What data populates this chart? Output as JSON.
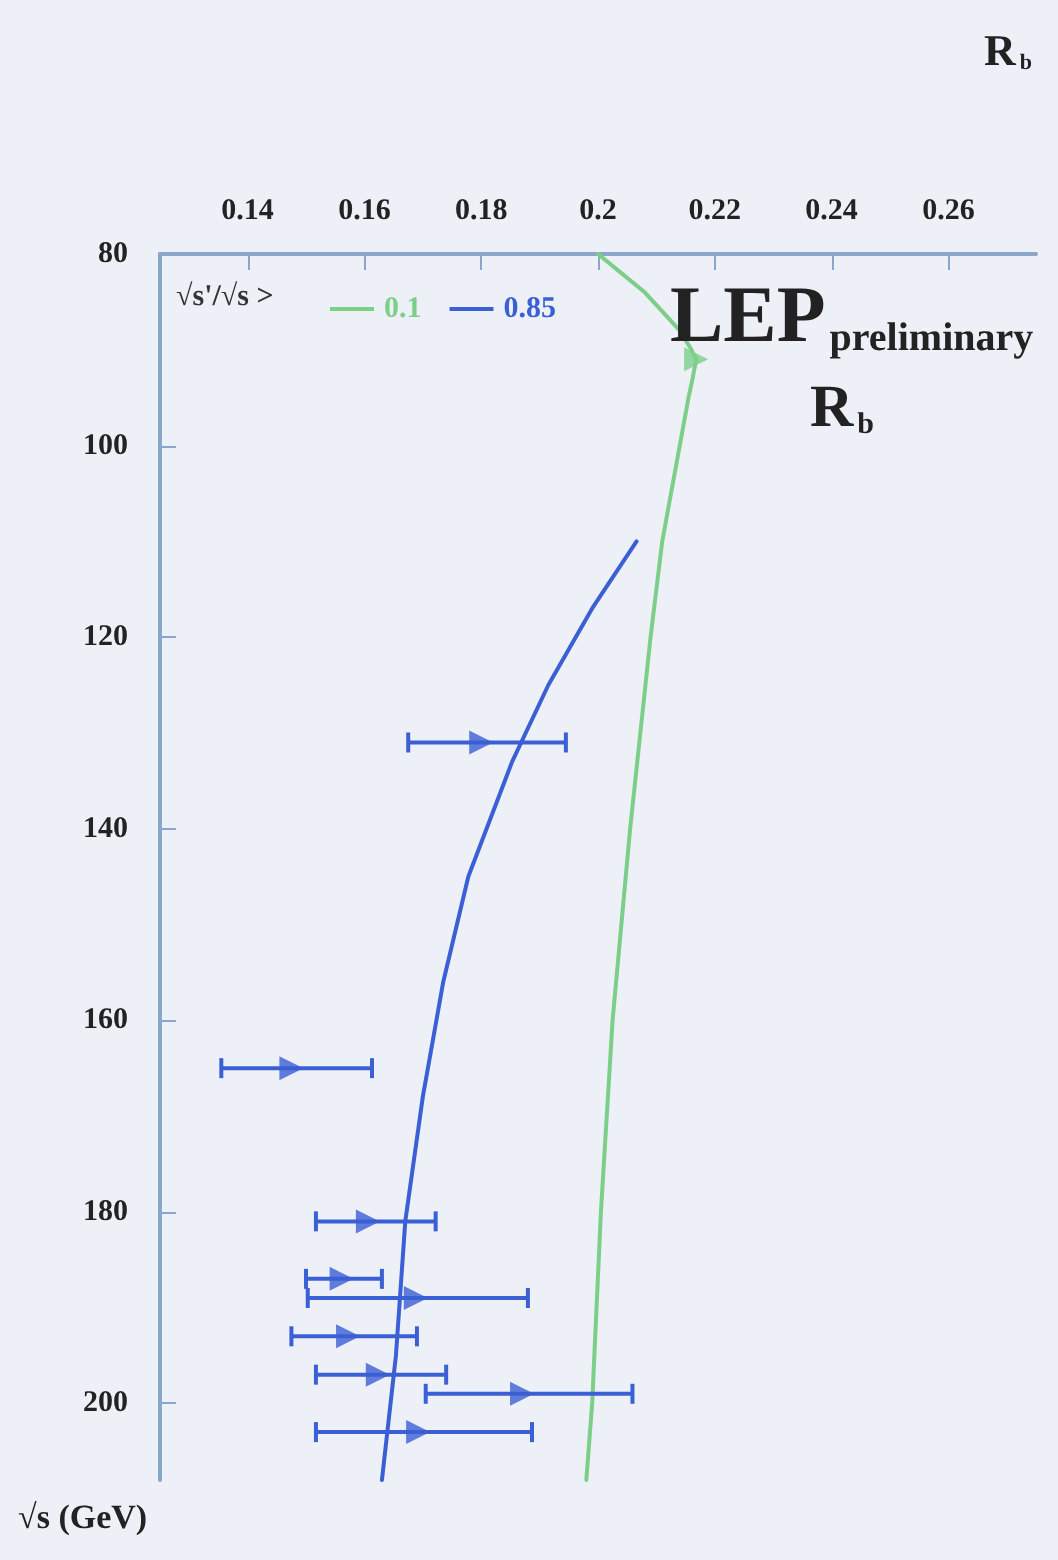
{
  "chart_data": {
    "type": "line",
    "title": "LEP$_{preliminary}$",
    "subtitle": "R$_{b}$",
    "xlabel": "R$_{b}$",
    "ylabel": "√s (GeV)",
    "legend_title": "√s'/√s >",
    "legend": "top left",
    "grid": false,
    "xlim": [
      0.125,
      0.275
    ],
    "xticks": [
      0.14,
      0.16,
      0.18,
      0.2,
      0.22,
      0.24,
      0.26
    ],
    "ylim": [
      208,
      80
    ],
    "yticks": [
      80,
      100,
      120,
      140,
      160,
      180,
      200
    ],
    "series": [
      {
        "name": "0.1",
        "color": "#7ccf88",
        "marker": "none",
        "line_style": "solid",
        "x": [
          0.2,
          0.204,
          0.208,
          0.211,
          0.214,
          0.216,
          0.2168,
          0.2162,
          0.2155,
          0.214,
          0.211,
          0.209,
          0.2055,
          0.2025,
          0.2005,
          0.199,
          0.198
        ],
        "values": [
          80,
          82,
          84,
          86,
          88,
          90,
          91,
          93,
          95,
          100,
          110,
          120,
          140,
          160,
          180,
          200,
          208
        ]
      },
      {
        "type": "scatter",
        "color": "#7ccf88",
        "marker": "triangle",
        "x": [
          0.2168
        ],
        "values": [
          91
        ]
      },
      {
        "name": "0.85",
        "color": "#3b5fd4",
        "marker": "none",
        "line_style": "solid",
        "x": [
          0.2066,
          0.199,
          0.1915,
          0.1853,
          0.1778,
          0.1735,
          0.17,
          0.167,
          0.1654,
          0.163
        ],
        "values": [
          110,
          117,
          125,
          133,
          145,
          156,
          168,
          181,
          195,
          208
        ]
      },
      {
        "type": "scatter",
        "color": "#3b5fd4",
        "marker": "triangle",
        "x": [
          0.18,
          0.1475,
          0.1606,
          0.1561,
          0.1688,
          0.1572,
          0.1623,
          0.187,
          0.1692
        ],
        "values": [
          131,
          165,
          181,
          187,
          189,
          193,
          197,
          199,
          203
        ],
        "xerrors": [
          [
            0.1675,
            0.1945
          ],
          [
            0.1355,
            0.1613
          ],
          [
            0.1517,
            0.1722
          ],
          [
            0.15,
            0.163
          ],
          [
            0.1503,
            0.188
          ],
          [
            0.1475,
            0.169
          ],
          [
            0.1517,
            0.174
          ],
          [
            0.1705,
            0.2059
          ],
          [
            0.1517,
            0.1887
          ]
        ]
      }
    ]
  }
}
